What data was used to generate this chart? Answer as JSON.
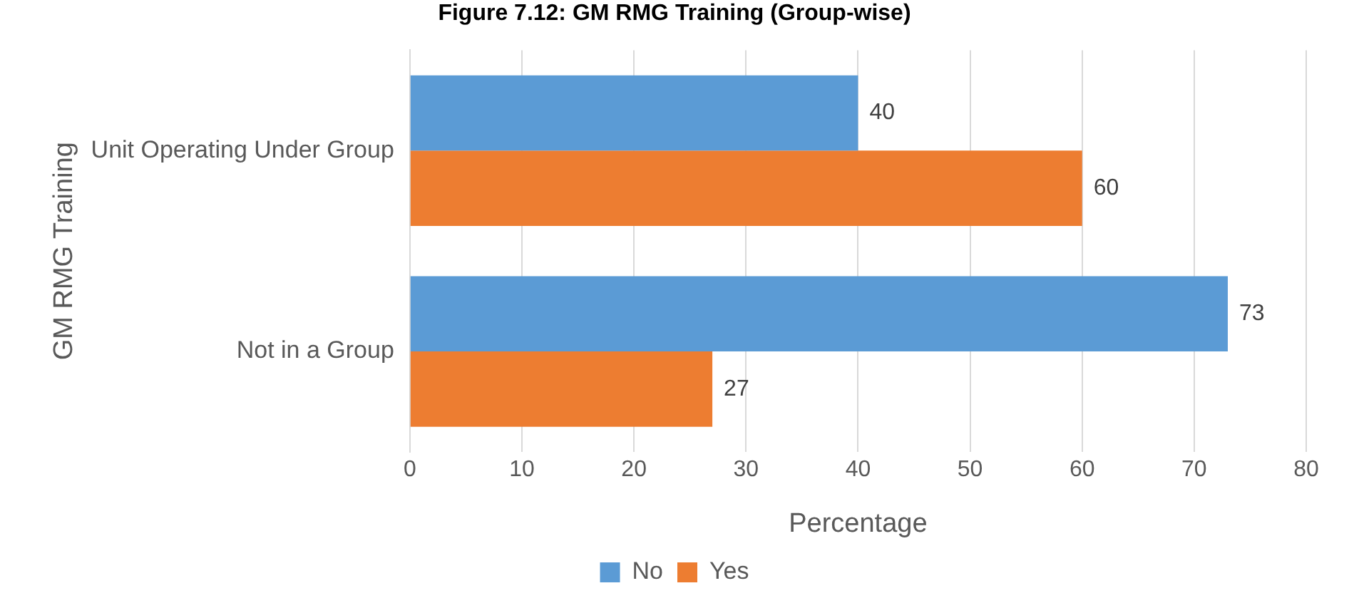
{
  "chart_data": {
    "type": "bar",
    "orientation": "horizontal",
    "title": "Figure 7.12: GM RMG Training (Group-wise)",
    "xlabel": "Percentage",
    "ylabel": "GM RMG Training",
    "categories": [
      "Unit Operating Under Group",
      "Not in a Group"
    ],
    "series": [
      {
        "name": "No",
        "color": "#5b9bd5",
        "values": [
          40,
          73
        ]
      },
      {
        "name": "Yes",
        "color": "#ed7d31",
        "values": [
          60,
          27
        ]
      }
    ],
    "xlim": [
      0,
      80
    ],
    "xticks": [
      0,
      10,
      20,
      30,
      40,
      50,
      60,
      70,
      80
    ],
    "grid": "x",
    "legend": "bottom",
    "data_labels": true
  }
}
